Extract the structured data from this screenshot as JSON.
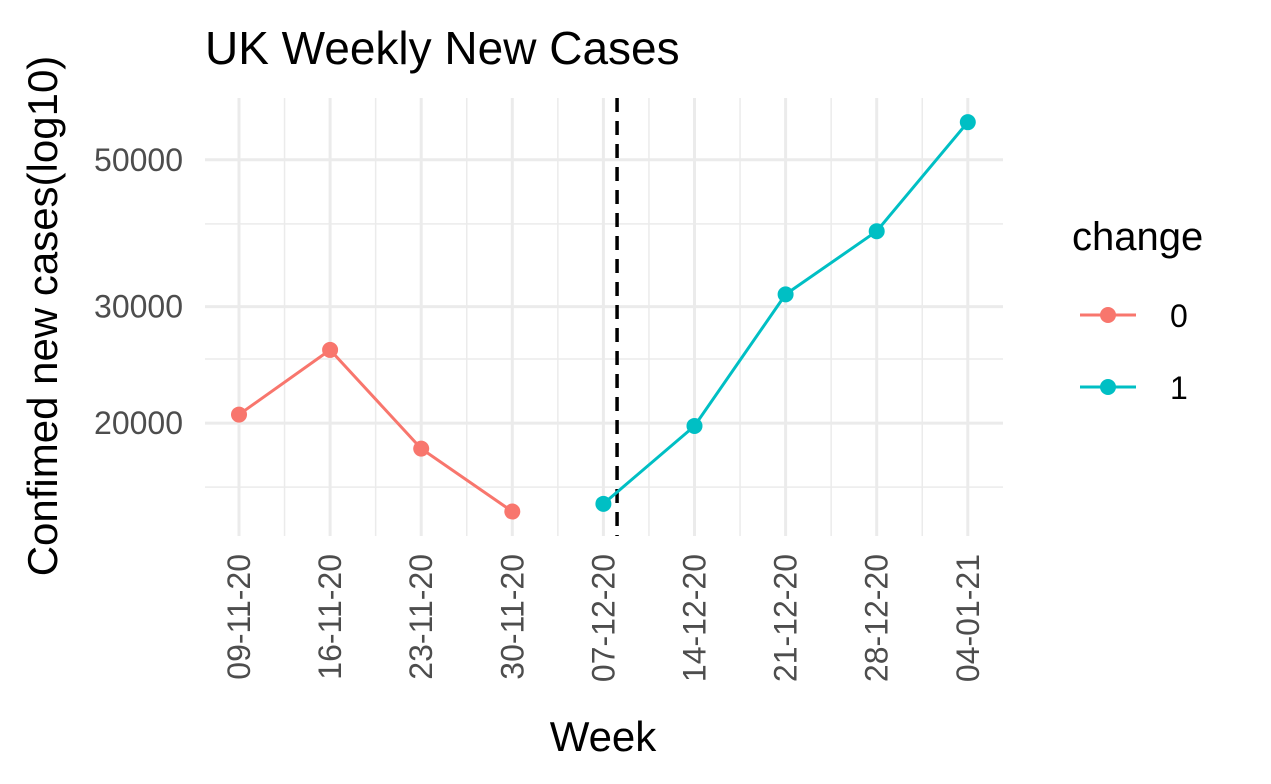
{
  "chart_data": {
    "type": "line",
    "title": "UK Weekly New Cases",
    "xlabel": "Week",
    "ylabel": "Confimed new cases(log10)",
    "y_scale": "log10",
    "ylim": [
      13500,
      62000
    ],
    "y_ticks": [
      20000,
      30000,
      50000
    ],
    "y_tick_labels": [
      "20000",
      "30000",
      "50000"
    ],
    "y_minor_ticks": [
      16000,
      25000,
      40000
    ],
    "categories": [
      "09-11-20",
      "16-11-20",
      "23-11-20",
      "30-11-20",
      "07-12-20",
      "14-12-20",
      "21-12-20",
      "28-12-20",
      "04-01-21"
    ],
    "grid": true,
    "legend": {
      "title": "change",
      "position": "right"
    },
    "vline": {
      "x": 4.15,
      "style": "dashed",
      "color": "#000000"
    },
    "series": [
      {
        "name": "0",
        "color": "#F8766D",
        "points": [
          [
            0,
            20600
          ],
          [
            1,
            25800
          ],
          [
            2,
            18300
          ],
          [
            3,
            14700
          ]
        ]
      },
      {
        "name": "1",
        "color": "#00BFC4",
        "points": [
          [
            4,
            15100
          ],
          [
            5,
            19800
          ],
          [
            6,
            31300
          ],
          [
            7,
            39000
          ],
          [
            8,
            57000
          ]
        ]
      }
    ]
  }
}
